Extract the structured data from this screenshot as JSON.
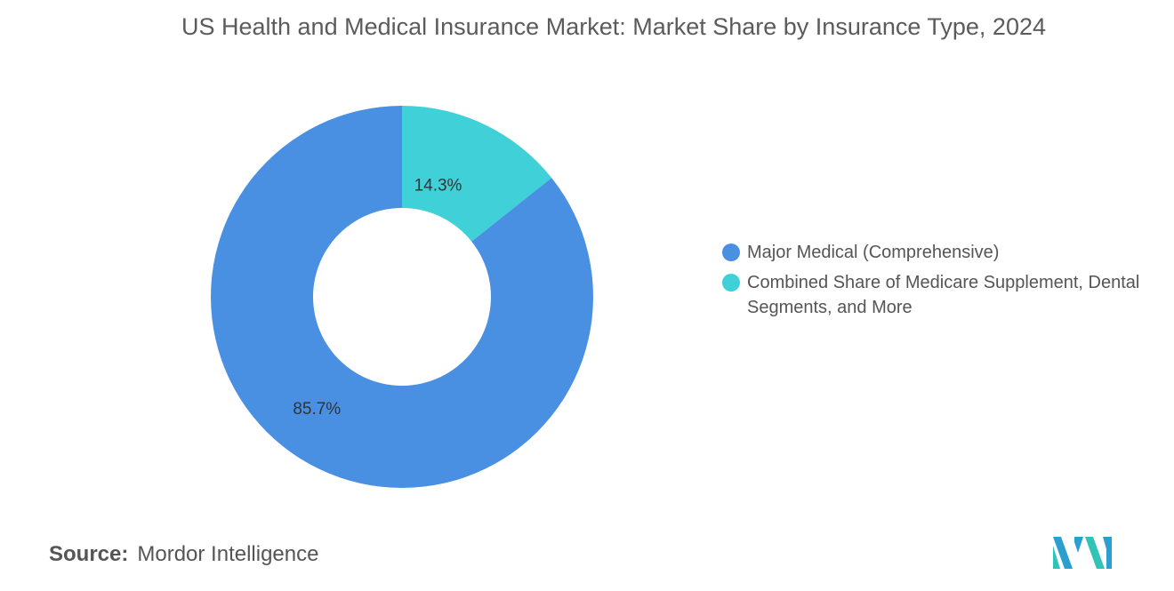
{
  "title": "US Health and Medical Insurance Market: Market Share by Insurance Type, 2024",
  "source": {
    "key": "Source:",
    "value": "Mordor Intelligence"
  },
  "chart_data": {
    "type": "pie",
    "variant": "donut",
    "title": "US Health and Medical Insurance Market: Market Share by Insurance Type, 2024",
    "categories": [
      "Major Medical (Comprehensive)",
      "Combined Share of Medicare Supplement, Dental Segments, and More"
    ],
    "values": [
      85.7,
      14.3
    ],
    "value_labels": [
      "85.7%",
      "14.3%"
    ],
    "colors": [
      "#4a90e2",
      "#40d0d8"
    ],
    "legend_position": "right"
  },
  "logo": {
    "icon": "mordor-intelligence-logo",
    "colors": [
      "#2b9fd0",
      "#31c2b8"
    ]
  }
}
